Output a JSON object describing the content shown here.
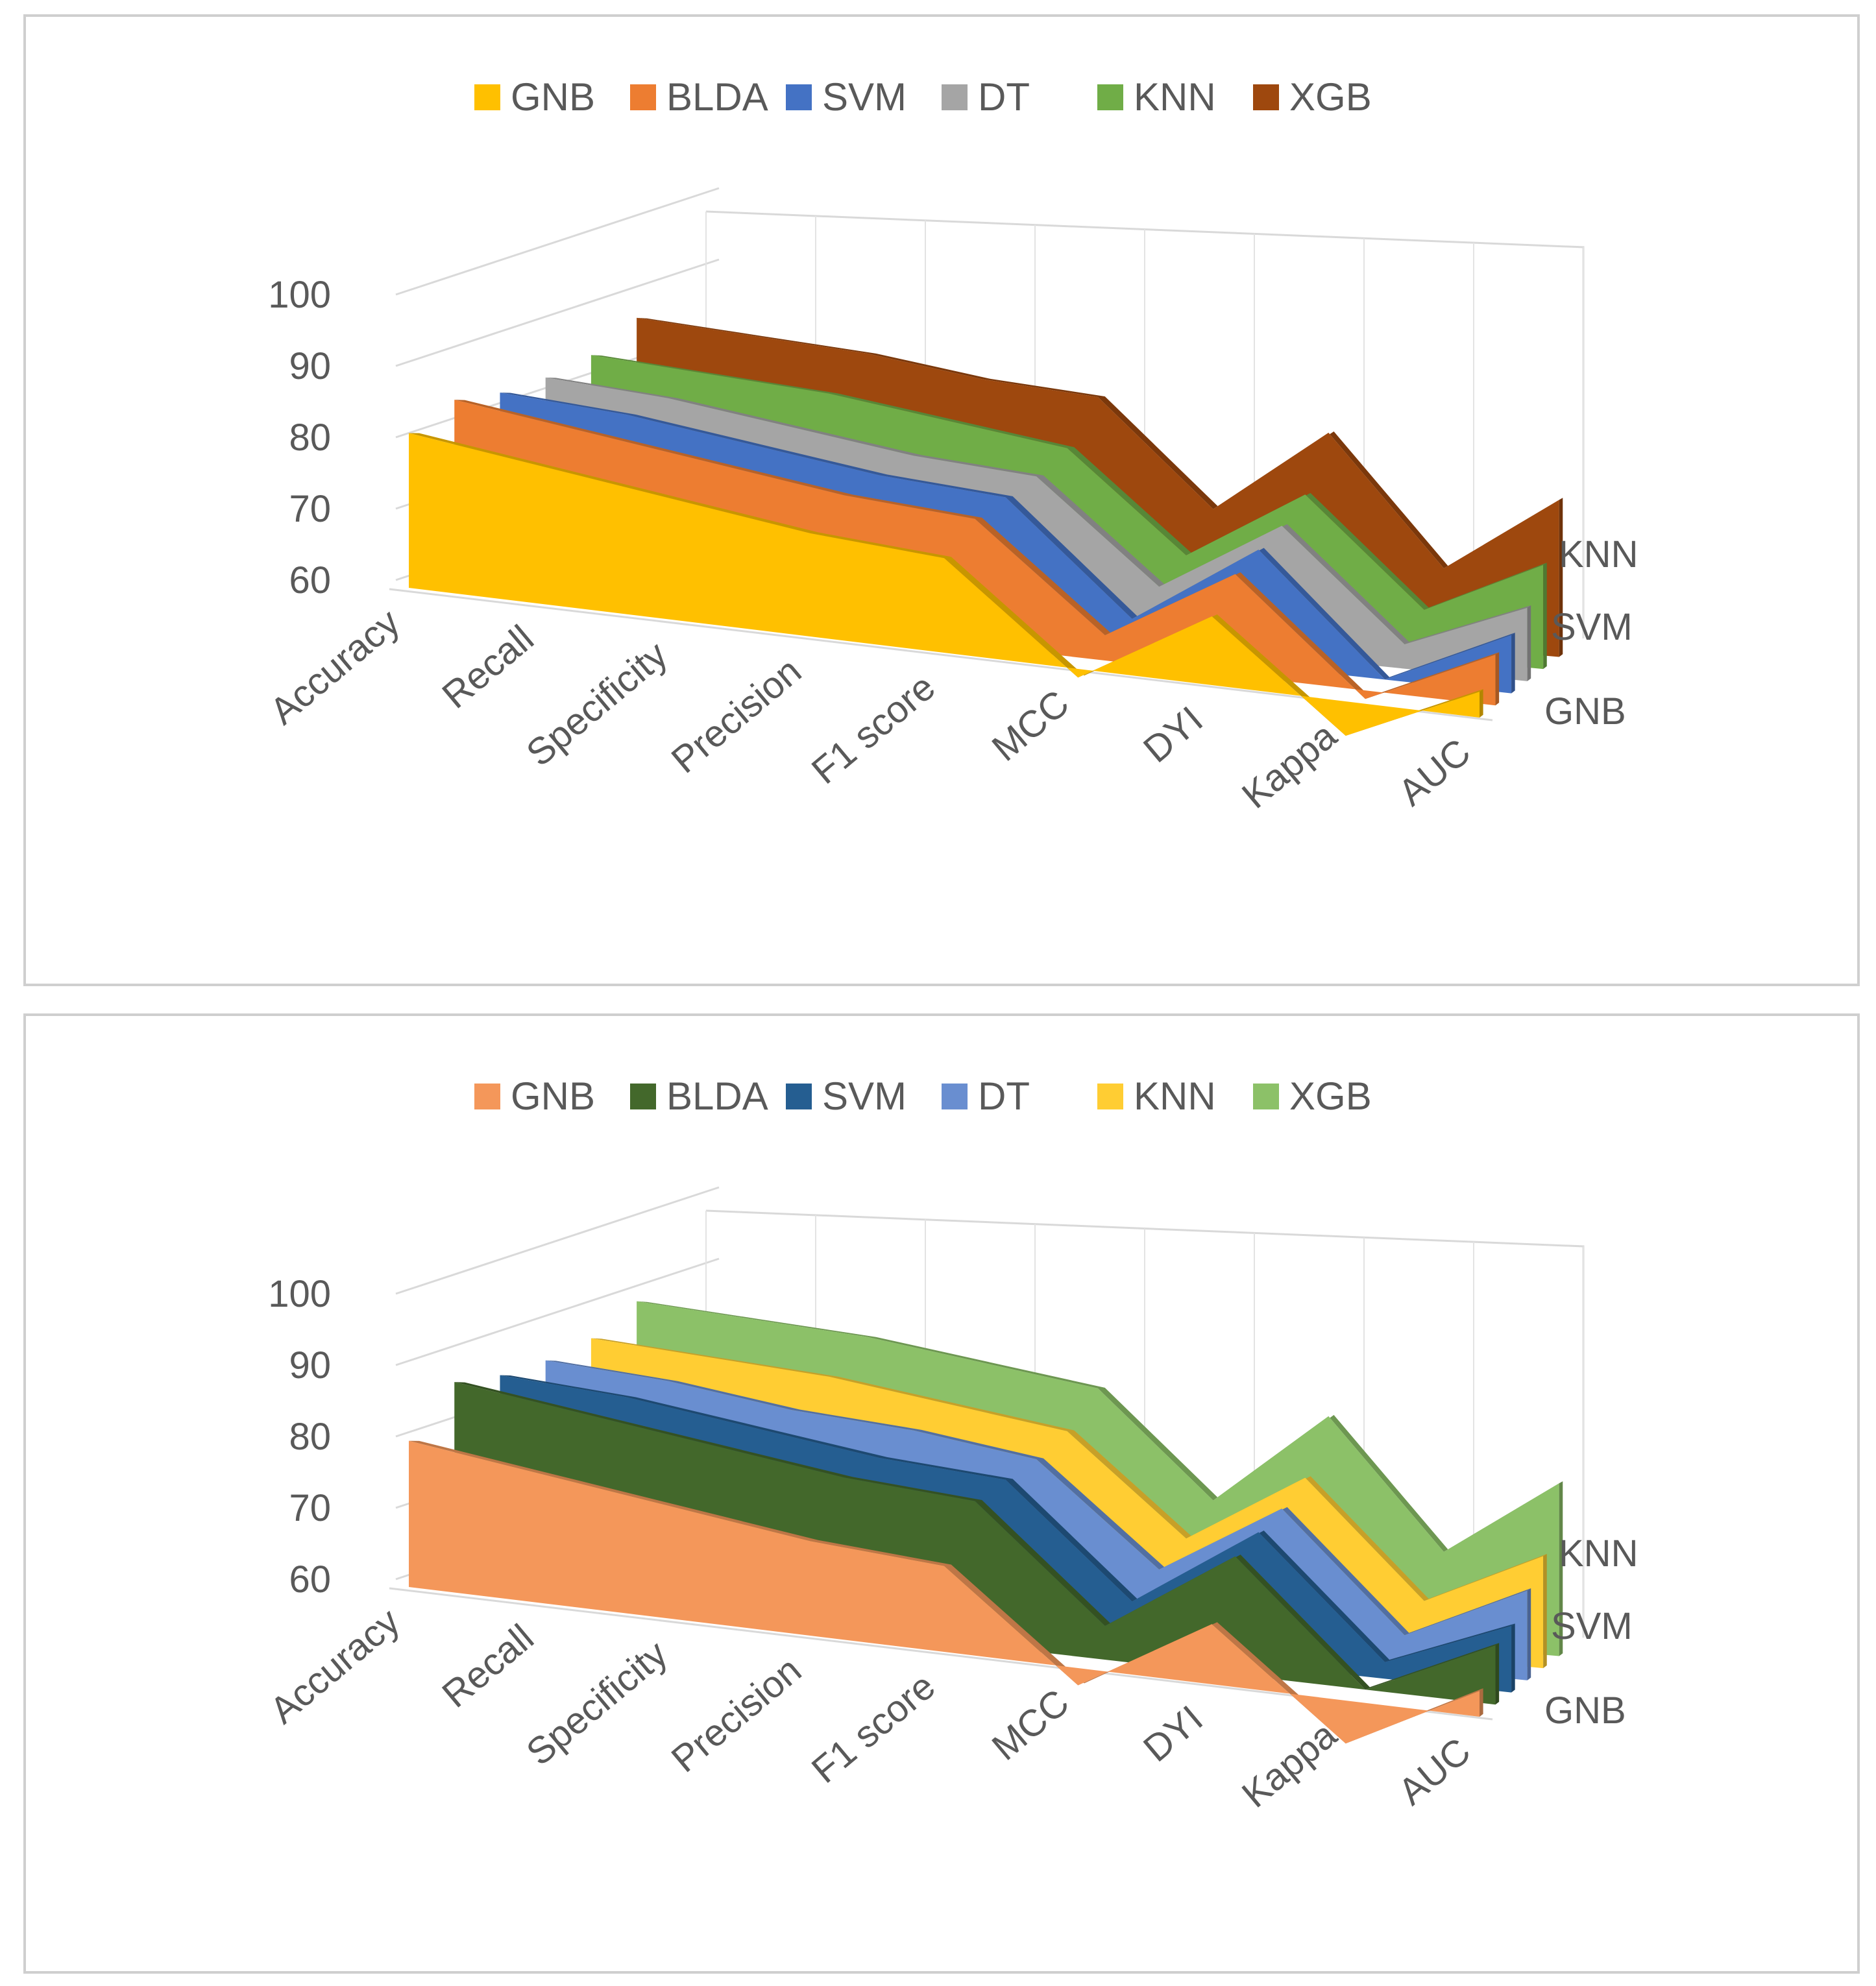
{
  "charts": [
    {
      "chart_data": {
        "type": "area",
        "subtype": "3d-area",
        "title": "",
        "categories": [
          "Accuracy",
          "Recall",
          "Specificity",
          "Precision",
          "F1 score",
          "MCC",
          "DYI",
          "Kappa",
          "AUC"
        ],
        "y_ticks": [
          "60",
          "70",
          "80",
          "90",
          "100"
        ],
        "ylim": [
          60,
          100
        ],
        "depth_labels": [
          "GNB",
          "SVM",
          "KNN"
        ],
        "legend_position": "top",
        "series": [
          {
            "name": "GNB",
            "color": "#FFC000",
            "values": [
              78,
              76,
              74,
              72,
              71,
              59,
              68,
              56,
              63
            ]
          },
          {
            "name": "BLDA",
            "color": "#ED7D31",
            "values": [
              82,
              80,
              78,
              76,
              75,
              63,
              72,
              59,
              66
            ]
          },
          {
            "name": "SVM",
            "color": "#4472C4",
            "values": [
              83,
              82,
              80,
              78,
              77,
              64,
              74,
              60,
              67
            ]
          },
          {
            "name": "DT",
            "color": "#A5A5A5",
            "values": [
              85,
              84,
              82,
              80,
              79,
              67,
              76,
              63,
              69
            ]
          },
          {
            "name": "KNN",
            "color": "#70AD47",
            "values": [
              88,
              87,
              86,
              84,
              82,
              70,
              79,
              66,
              73
            ]
          },
          {
            "name": "XGB",
            "color": "#9E480E",
            "values": [
              93,
              92,
              91,
              89,
              88,
              75,
              86,
              70,
              80
            ]
          }
        ]
      }
    },
    {
      "chart_data": {
        "type": "area",
        "subtype": "3d-area",
        "title": "",
        "categories": [
          "Accuracy",
          "Recall",
          "Specificity",
          "Precision",
          "F1 score",
          "MCC",
          "DYI",
          "Kappa",
          "AUC"
        ],
        "y_ticks": [
          "60",
          "70",
          "80",
          "90",
          "100"
        ],
        "ylim": [
          60,
          100
        ],
        "depth_labels": [
          "GNB",
          "SVM",
          "KNN"
        ],
        "legend_position": "top",
        "series": [
          {
            "name": "GNB",
            "color": "#F4975A",
            "values": [
              77,
              75,
              73,
              71,
              70,
              58,
              67,
              55,
              63
            ]
          },
          {
            "name": "BLDA",
            "color": "#43682B",
            "values": [
              84,
              82,
              80,
              78,
              77,
              64,
              74,
              60,
              67
            ]
          },
          {
            "name": "SVM",
            "color": "#255E91",
            "values": [
              85,
              84,
              82,
              80,
              79,
              66,
              76,
              62,
              68
            ]
          },
          {
            "name": "DT",
            "color": "#698ED0",
            "values": [
              87,
              86,
              84,
              83,
              81,
              69,
              78,
              64,
              71
            ]
          },
          {
            "name": "KNN",
            "color": "#FFCD33",
            "values": [
              90,
              89,
              88,
              86,
              84,
              72,
              81,
              67,
              74
            ]
          },
          {
            "name": "XGB",
            "color": "#8CC168",
            "values": [
              95,
              94,
              93,
              91,
              89,
              76,
              88,
              72,
              82
            ]
          }
        ]
      }
    }
  ]
}
